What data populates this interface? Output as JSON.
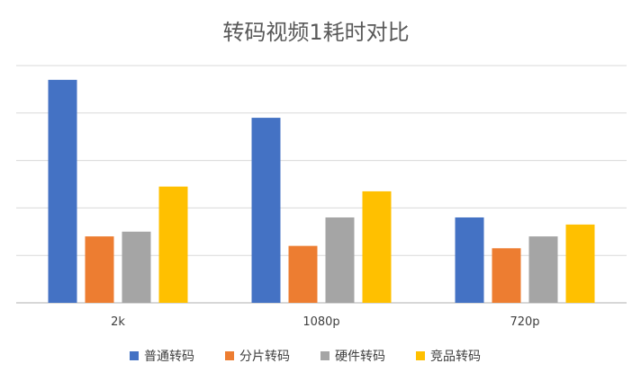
{
  "chart_data": {
    "type": "bar",
    "title": "转码视频1耗时对比",
    "categories": [
      "2k",
      "1080p",
      "720p"
    ],
    "series": [
      {
        "name": "普通转码",
        "color": "#4472C4",
        "values": [
          4.7,
          3.9,
          1.8
        ]
      },
      {
        "name": "分片转码",
        "color": "#ED7D31",
        "values": [
          1.4,
          1.2,
          1.15
        ]
      },
      {
        "name": "硬件转码",
        "color": "#A5A5A5",
        "values": [
          1.5,
          1.8,
          1.4
        ]
      },
      {
        "name": "竞品转码",
        "color": "#FFC000",
        "values": [
          2.45,
          2.35,
          1.65
        ]
      }
    ],
    "ylim": [
      0,
      5
    ],
    "gridlines": [
      0,
      1,
      2,
      3,
      4,
      5
    ],
    "grid": true,
    "legend": "bottom"
  }
}
